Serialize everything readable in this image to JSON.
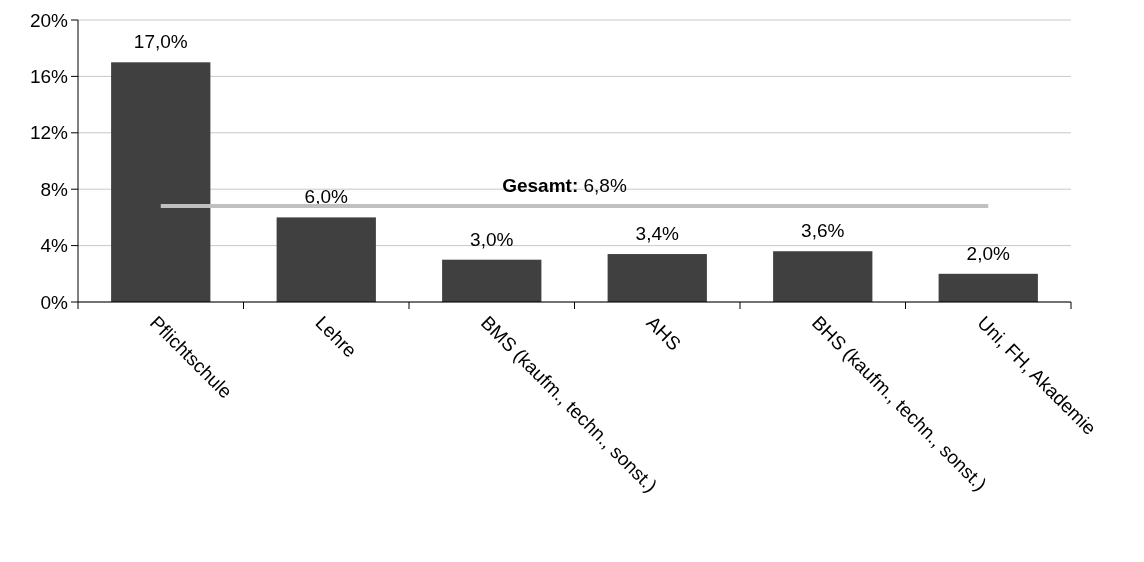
{
  "chart_data": {
    "type": "bar",
    "categories": [
      "Pflichtschule",
      "Lehre",
      "BMS (kaufm., techn., sonst.)",
      "AHS",
      "BHS (kaufm., techn., sonst.)",
      "Uni, FH, Akademie"
    ],
    "values": [
      17.0,
      6.0,
      3.0,
      3.4,
      3.6,
      2.0
    ],
    "value_labels": [
      "17,0%",
      "6,0%",
      "3,0%",
      "3,4%",
      "3,6%",
      "2,0%"
    ],
    "color": "#404040",
    "ylim": [
      0,
      20
    ],
    "yticks": [
      {
        "value": 0,
        "label": "0%"
      },
      {
        "value": 4,
        "label": "4%"
      },
      {
        "value": 8,
        "label": "8%"
      },
      {
        "value": 12,
        "label": "12%"
      },
      {
        "value": 16,
        "label": "16%"
      },
      {
        "value": 20,
        "label": "20%"
      }
    ],
    "grid": "y",
    "ref_lines": [
      {
        "axis": "y",
        "value": 6.8,
        "label": "Gesamt: 6,8%",
        "color": "#c0c0c0"
      }
    ]
  }
}
